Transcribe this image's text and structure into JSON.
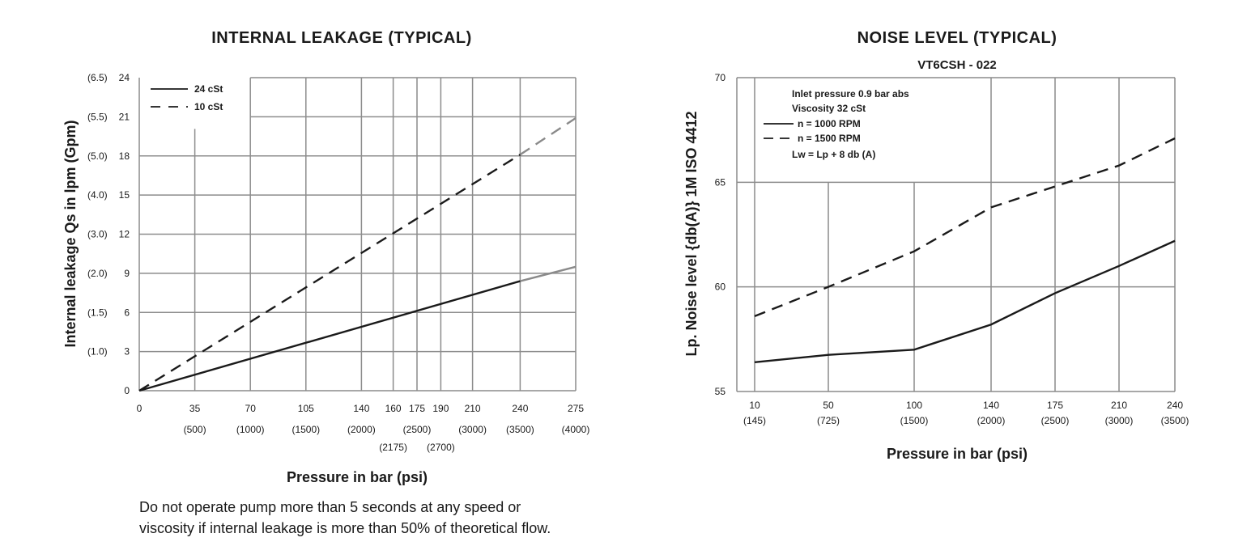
{
  "chart_data": [
    {
      "type": "line",
      "title": "INTERNAL LEAKAGE (TYPICAL)",
      "xlabel": "Pressure in bar (psi)",
      "ylabel": "Internal leakage Qs in lpm (Gpm)",
      "x_ticks": [
        0,
        35,
        70,
        105,
        140,
        160,
        175,
        190,
        210,
        240,
        275
      ],
      "x_tick_labels": [
        "0",
        "35",
        "70",
        "105",
        "140",
        "160",
        "175",
        "190",
        "210",
        "240",
        "275"
      ],
      "x_tick_sublabels": [
        "",
        "(500)",
        "(1000)",
        "(1500)",
        "(2000)",
        "(2175)",
        "(2500)",
        "(2700)",
        "(3000)",
        "(3500)",
        "(4000)"
      ],
      "y_ticks": [
        0,
        3,
        6,
        9,
        12,
        15,
        18,
        21,
        24
      ],
      "y_tick_labels": [
        "0",
        "3",
        "6",
        "9",
        "12",
        "15",
        "18",
        "21",
        "24"
      ],
      "y_tick_sublabels": [
        "",
        "(1.0)",
        "(1.5)",
        "(2.0)",
        "(3.0)",
        "(4.0)",
        "(5.0)",
        "(5.5)",
        "(6.5)"
      ],
      "xlim": [
        0,
        275
      ],
      "ylim": [
        0,
        24
      ],
      "grid": true,
      "legend_position": "top-left",
      "series": [
        {
          "name": "24 cSt",
          "style": "solid",
          "color": "#1a1a1a",
          "extension_color": "#8a8a8a",
          "x": [
            0,
            240,
            275
          ],
          "y": [
            0,
            8.4,
            9.5
          ]
        },
        {
          "name": "10 cSt",
          "style": "dashed",
          "color": "#1a1a1a",
          "extension_color": "#8a8a8a",
          "x": [
            0,
            240,
            275
          ],
          "y": [
            0,
            18.1,
            20.9
          ]
        }
      ]
    },
    {
      "type": "line",
      "title": "NOISE LEVEL (TYPICAL)",
      "subtitle": "VT6CSH - 022",
      "xlabel": "Pressure in bar (psi)",
      "ylabel": "Lp. Noise level {db(A)} 1M ISO 4412",
      "x_ticks": [
        10,
        50,
        100,
        140,
        175,
        210,
        240
      ],
      "x_tick_labels": [
        "10",
        "50",
        "100",
        "140",
        "175",
        "210",
        "240"
      ],
      "x_tick_sublabels": [
        "(145)",
        "(725)",
        "(1500)",
        "(2000)",
        "(2500)",
        "(3000)",
        "(3500)"
      ],
      "y_ticks": [
        55,
        60,
        65,
        70
      ],
      "y_tick_labels": [
        "55",
        "60",
        "65",
        "70"
      ],
      "ylim": [
        55,
        70
      ],
      "grid": true,
      "legend_position": "top-left",
      "annotations": [
        "Inlet pressure   0.9 bar abs",
        "Viscosity   32 cSt",
        "Lw = Lp + 8 db (A)"
      ],
      "series": [
        {
          "name": "n  = 1000 RPM",
          "style": "solid",
          "color": "#1a1a1a",
          "x": [
            10,
            50,
            100,
            140,
            175,
            210,
            240
          ],
          "y": [
            56.4,
            56.75,
            57.0,
            58.2,
            59.7,
            61.0,
            62.2
          ]
        },
        {
          "name": "n  = 1500 RPM",
          "style": "dashed",
          "color": "#1a1a1a",
          "x": [
            10,
            50,
            100,
            140,
            175,
            210,
            240
          ],
          "y": [
            58.6,
            60.0,
            61.7,
            63.8,
            64.8,
            65.8,
            67.1
          ]
        }
      ]
    }
  ],
  "note": {
    "line1": "Do not operate pump more than 5 seconds at any speed or",
    "line2": "viscosity if internal leakage is more than 50% of theoretical flow."
  }
}
